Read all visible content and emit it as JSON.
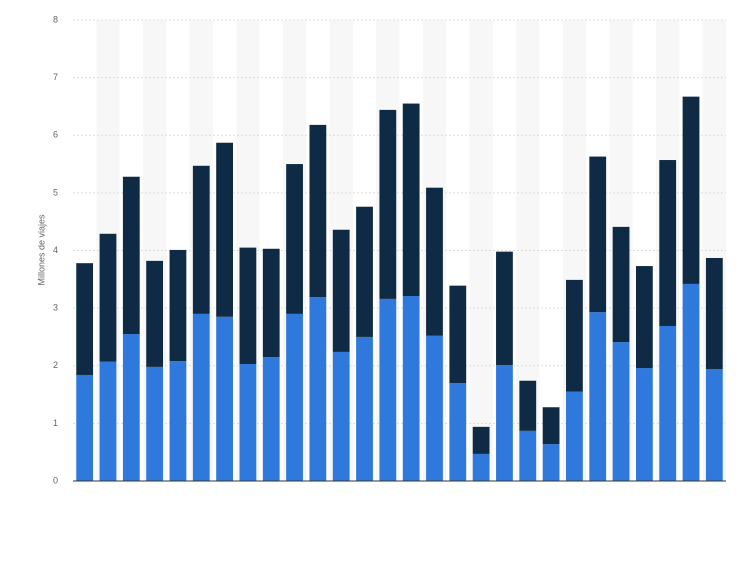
{
  "chart_data": {
    "type": "stacked_bar",
    "y_label": "Millones de viajes",
    "categories": [
      null,
      null,
      null,
      null,
      null,
      null,
      null,
      null,
      null,
      null,
      null,
      null,
      null,
      null,
      null,
      null,
      null,
      null,
      null,
      null,
      null,
      null,
      null,
      null,
      null,
      null,
      null,
      null
    ],
    "series": [
      {
        "color": "#2f78dc",
        "values": [
          1.84,
          2.07,
          2.55,
          1.98,
          2.08,
          2.9,
          2.85,
          2.03,
          2.15,
          2.9,
          3.19,
          2.24,
          2.5,
          3.16,
          3.21,
          2.52,
          1.7,
          0.47,
          2.01,
          0.87,
          0.64,
          1.55,
          2.93,
          2.41,
          1.96,
          2.69,
          3.42,
          1.94
        ]
      },
      {
        "color": "#0f2a44",
        "values": [
          1.94,
          2.22,
          2.73,
          1.84,
          1.93,
          2.57,
          3.02,
          2.02,
          1.88,
          2.6,
          2.99,
          2.12,
          2.26,
          3.28,
          3.34,
          2.57,
          1.69,
          0.47,
          1.97,
          0.87,
          0.64,
          1.94,
          2.7,
          2.0,
          1.77,
          2.88,
          3.25,
          1.93
        ]
      }
    ],
    "ylim": [
      0,
      8
    ],
    "yticks": [
      0,
      1,
      2,
      3,
      4,
      5,
      6,
      7,
      8
    ],
    "grid": true
  }
}
